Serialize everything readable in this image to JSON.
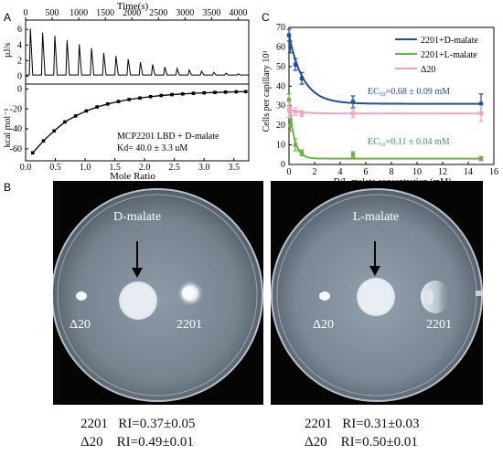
{
  "panels": {
    "a_label": "A",
    "b_label": "B",
    "c_label": "C"
  },
  "panel_a": {
    "top_axis_title": "Time(s)",
    "top_ticks": [
      "0",
      "500",
      "1000",
      "1500",
      "2000",
      "2500",
      "3000",
      "3500",
      "4000"
    ],
    "upper_ylabel": "µJ/s",
    "upper_ticks": [
      "6",
      "4",
      "2",
      "0"
    ],
    "lower_ylabel": "kcal mol⁻¹",
    "lower_ticks": [
      "0",
      "-20",
      "-40",
      "-60"
    ],
    "xlabel": "Mole Ratio",
    "x_ticks": [
      "0.0",
      "0.5",
      "1.0",
      "1.5",
      "2.0",
      "2.5",
      "3.0",
      "3.5"
    ],
    "annotation_line1": "MCP2201 LBD + D-malate",
    "annotation_line2": "Kd= 40.0 ± 3.3 uM"
  },
  "chart_data": [
    {
      "type": "line",
      "panel": "A-upper",
      "xlabel": "Time(s)",
      "ylabel": "µJ/s",
      "xlim": [
        0,
        4200
      ],
      "ylim": [
        -1,
        7.2
      ],
      "injection_peaks": {
        "time": [
          90,
          320,
          550,
          780,
          1010,
          1240,
          1470,
          1700,
          1930,
          2160,
          2390,
          2620,
          2850,
          3080,
          3310,
          3540,
          3770,
          4000
        ],
        "height": [
          6.1,
          5.6,
          5.2,
          4.6,
          4.1,
          3.6,
          3.0,
          2.6,
          2.2,
          1.8,
          1.5,
          1.2,
          1.0,
          0.8,
          0.65,
          0.5,
          0.4,
          0.3
        ]
      }
    },
    {
      "type": "line",
      "panel": "A-lower",
      "xlabel": "Mole Ratio",
      "ylabel": "kcal mol⁻¹",
      "xlim": [
        0,
        3.75
      ],
      "ylim": [
        -72,
        5
      ],
      "x": [
        0.12,
        0.3,
        0.48,
        0.66,
        0.84,
        1.02,
        1.2,
        1.38,
        1.56,
        1.74,
        1.92,
        2.1,
        2.28,
        2.46,
        2.64,
        2.82,
        3.0,
        3.18,
        3.36,
        3.54,
        3.7
      ],
      "y": [
        -64,
        -52,
        -42,
        -33,
        -27,
        -22,
        -18,
        -15,
        -12.5,
        -10.5,
        -9,
        -7.6,
        -6.5,
        -5.6,
        -4.9,
        -4.3,
        -3.8,
        -3.4,
        -3.1,
        -2.8,
        -2.6
      ]
    },
    {
      "type": "line",
      "panel": "C",
      "xlabel": "D/L-malate concentration (mM)",
      "ylabel": "Cells per capillary 10³",
      "xlim": [
        0,
        16
      ],
      "ylim": [
        0,
        70
      ],
      "x_ticks": [
        "0",
        "2",
        "4",
        "6",
        "8",
        "10",
        "12",
        "14",
        "16"
      ],
      "y_ticks": [
        "0",
        "10",
        "20",
        "30",
        "40",
        "50",
        "60",
        "70"
      ],
      "series": [
        {
          "name": "2201+D-malate",
          "color": "#1f4fa3",
          "x": [
            0,
            0.1,
            0.5,
            1,
            5,
            15
          ],
          "y": [
            66,
            60,
            51,
            44,
            32,
            31
          ],
          "err": [
            3,
            3,
            3,
            3,
            3,
            5
          ]
        },
        {
          "name": "2201+L-malate",
          "color": "#6db33f",
          "x": [
            0,
            0.1,
            0.5,
            1,
            5,
            15
          ],
          "y": [
            33,
            20,
            10,
            6,
            5,
            3
          ],
          "err": [
            3,
            3,
            3,
            1.5,
            1.5,
            1
          ]
        },
        {
          "name": "Δ20",
          "color": "#f2a2c8",
          "x": [
            0,
            0.1,
            0.5,
            1,
            5,
            15
          ],
          "y": [
            28,
            27,
            27,
            26,
            26,
            26
          ],
          "err": [
            4,
            2,
            2,
            1.5,
            2,
            4
          ]
        }
      ],
      "ec50_d": "EC₅₀=0.68 ± 0.09 mM",
      "ec50_l": "EC₅₀=0.11 ± 0.04 mM"
    }
  ],
  "panel_b": {
    "left": {
      "compound": "D-malate",
      "label_mutant": "Δ20",
      "label_wt": "2201",
      "ri_wt": "2201   RI=0.37±0.05",
      "ri_mutant": "Δ20    RI=0.49±0.01"
    },
    "right": {
      "compound": "L-malate",
      "label_mutant": "Δ20",
      "label_wt": "2201",
      "ri_wt": "2201   RI=0.31±0.03",
      "ri_mutant": "Δ20    RI=0.50±0.01"
    }
  }
}
